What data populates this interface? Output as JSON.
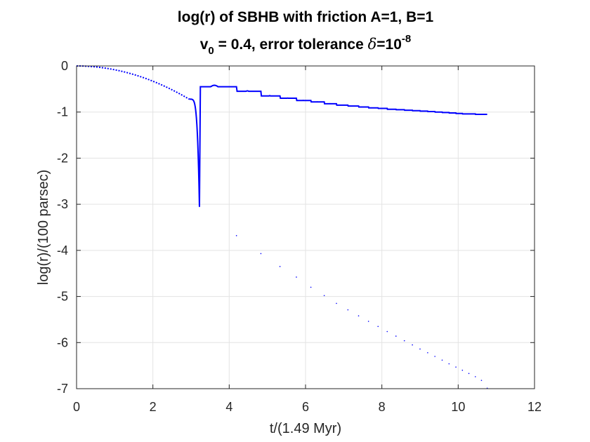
{
  "chart_data": {
    "type": "line",
    "title": {
      "line1": "log(r) of SBHB with friction A=1, B=1",
      "line2_prefix": "v",
      "line2_sub": "0",
      "line2_mid": " = 0.4, error tolerance ",
      "line2_delta": "δ",
      "line2_eq": "=10",
      "line2_sup": "-8"
    },
    "xlabel": "t/(1.49 Myr)",
    "ylabel": "log(r)/(100 parsec)",
    "xlim": [
      0,
      12
    ],
    "ylim": [
      -7,
      0
    ],
    "xticks": [
      0,
      2,
      4,
      6,
      8,
      10,
      12
    ],
    "yticks": [
      0,
      -1,
      -2,
      -3,
      -4,
      -5,
      -6,
      -7
    ],
    "xtick_labels": [
      "0",
      "2",
      "4",
      "6",
      "8",
      "10",
      "12"
    ],
    "ytick_labels": [
      "0",
      "-1",
      "-2",
      "-3",
      "-4",
      "-5",
      "-6",
      "-7"
    ],
    "grid": true,
    "line_color": "#0000ff",
    "series": [
      {
        "initial_segment": {
          "x_start": 0,
          "x_end": 2.95,
          "y_start": 0,
          "y_end": -0.72,
          "style": "dotted"
        },
        "minima": [
          {
            "x": 3.22,
            "y": -3.05
          },
          {
            "x": 4.19,
            "y": -3.68
          },
          {
            "x": 4.83,
            "y": -4.07
          },
          {
            "x": 5.33,
            "y": -4.35
          },
          {
            "x": 5.76,
            "y": -4.58
          },
          {
            "x": 6.14,
            "y": -4.8
          },
          {
            "x": 6.49,
            "y": -4.98
          },
          {
            "x": 6.81,
            "y": -5.15
          },
          {
            "x": 7.11,
            "y": -5.29
          },
          {
            "x": 7.39,
            "y": -5.42
          },
          {
            "x": 7.65,
            "y": -5.54
          },
          {
            "x": 7.9,
            "y": -5.65
          },
          {
            "x": 8.14,
            "y": -5.76
          },
          {
            "x": 8.37,
            "y": -5.86
          },
          {
            "x": 8.59,
            "y": -5.96
          },
          {
            "x": 8.8,
            "y": -6.05
          },
          {
            "x": 9.0,
            "y": -6.14
          },
          {
            "x": 9.2,
            "y": -6.22
          },
          {
            "x": 9.39,
            "y": -6.3
          },
          {
            "x": 9.58,
            "y": -6.38
          },
          {
            "x": 9.76,
            "y": -6.46
          },
          {
            "x": 9.94,
            "y": -6.53
          },
          {
            "x": 10.11,
            "y": -6.6
          },
          {
            "x": 10.28,
            "y": -6.67
          },
          {
            "x": 10.45,
            "y": -6.74
          },
          {
            "x": 10.61,
            "y": -6.82
          },
          {
            "x": 10.76,
            "y": -6.99
          }
        ],
        "maxima": [
          -0.45,
          -0.55,
          -0.65,
          -0.7,
          -0.75,
          -0.78,
          -0.82,
          -0.85,
          -0.87,
          -0.89,
          -0.91,
          -0.92,
          -0.94,
          -0.95,
          -0.96,
          -0.97,
          -0.98,
          -0.99,
          -1.0,
          -1.01,
          -1.02,
          -1.03,
          -1.04,
          -1.04,
          -1.05,
          -1.05
        ]
      }
    ]
  }
}
